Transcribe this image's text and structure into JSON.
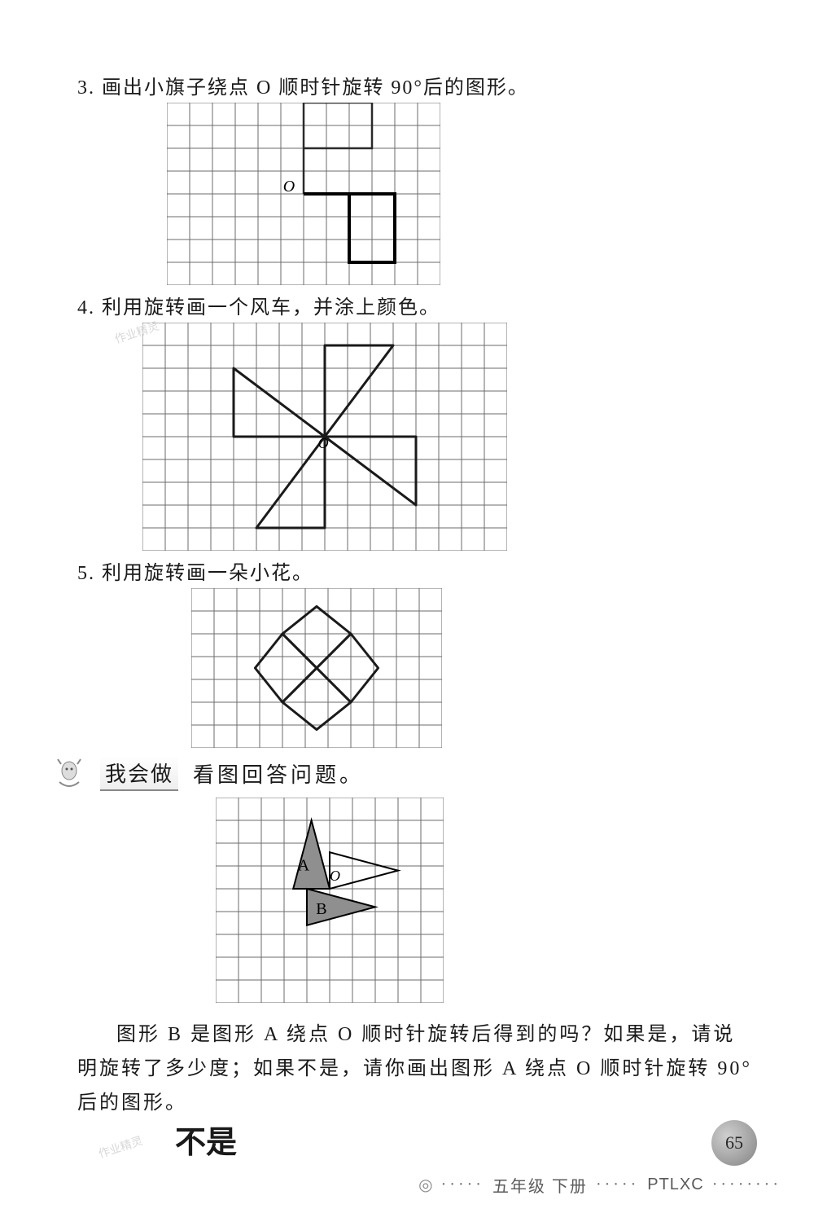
{
  "problems": {
    "p3": {
      "num": "3.",
      "text": "画出小旗子绕点 O 顺时针旋转 90°后的图形。"
    },
    "p4": {
      "num": "4.",
      "text": "利用旋转画一个风车，并涂上颜色。"
    },
    "p5": {
      "num": "5.",
      "text": "利用旋转画一朵小花。"
    }
  },
  "section": {
    "label": "我会做",
    "subtitle": "看图回答问题。"
  },
  "question_text": "图形 B 是图形 A 绕点 O 顺时针旋转后得到的吗？如果是，请说明旋转了多少度；如果不是，请你画出图形 A 绕点 O 顺时针旋转 90°后的图形。",
  "answer_handwritten": "不是",
  "footer": {
    "page": "65",
    "grade": "五年级 下册",
    "code": "PTLXC"
  },
  "watermark": "作业精灵",
  "grids": {
    "cell": 28,
    "g3": {
      "cols": 12,
      "rows": 8,
      "label_O": "O",
      "label_O_pos": [
        5.1,
        3.9
      ],
      "flag_original": {
        "poly": [
          [
            6,
            4
          ],
          [
            6,
            0
          ],
          [
            9,
            0
          ],
          [
            9,
            2
          ],
          [
            6,
            2
          ]
        ],
        "stroke": "#2a2a2a",
        "width": 2.5
      },
      "flag_rotated": {
        "poly": [
          [
            6,
            4
          ],
          [
            10,
            4
          ],
          [
            10,
            7
          ],
          [
            8,
            7
          ],
          [
            8,
            4
          ]
        ],
        "stroke": "#000000",
        "width": 4
      }
    },
    "g4": {
      "cols": 16,
      "rows": 10,
      "label_O": "O",
      "label_O_pos": [
        7.7,
        5.5
      ],
      "blades": [
        [
          [
            8,
            5
          ],
          [
            8,
            1
          ],
          [
            11,
            1
          ],
          [
            8,
            5
          ]
        ],
        [
          [
            8,
            5
          ],
          [
            12,
            5
          ],
          [
            12,
            8
          ],
          [
            8,
            5
          ]
        ],
        [
          [
            8,
            5
          ],
          [
            8,
            9
          ],
          [
            5,
            9
          ],
          [
            8,
            5
          ]
        ],
        [
          [
            8,
            5
          ],
          [
            4,
            5
          ],
          [
            4,
            2
          ],
          [
            8,
            5
          ]
        ]
      ],
      "stroke": "#1a1a1a",
      "width": 3
    },
    "g5": {
      "cols": 11,
      "rows": 7,
      "petals": [
        [
          [
            5.5,
            3.5
          ],
          [
            4.0,
            2.0
          ],
          [
            5.5,
            0.8
          ],
          [
            7.0,
            2.0
          ]
        ],
        [
          [
            5.5,
            3.5
          ],
          [
            7.0,
            2.0
          ],
          [
            8.2,
            3.5
          ],
          [
            7.0,
            5.0
          ]
        ],
        [
          [
            5.5,
            3.5
          ],
          [
            7.0,
            5.0
          ],
          [
            5.5,
            6.2
          ],
          [
            4.0,
            5.0
          ]
        ],
        [
          [
            5.5,
            3.5
          ],
          [
            4.0,
            5.0
          ],
          [
            2.8,
            3.5
          ],
          [
            4.0,
            2.0
          ]
        ]
      ],
      "stroke": "#1a1a1a",
      "width": 3
    },
    "g6": {
      "cols": 10,
      "rows": 9,
      "label_O": "O",
      "label_O_pos": [
        5.0,
        3.65
      ],
      "tri_A": {
        "label": "A",
        "pts": [
          [
            3.4,
            4
          ],
          [
            5,
            4
          ],
          [
            4.2,
            1
          ]
        ],
        "fill": "#8f8f8f"
      },
      "tri_B": {
        "label": "B",
        "pts": [
          [
            4,
            4
          ],
          [
            4,
            5.6
          ],
          [
            7,
            4.8
          ]
        ],
        "fill": "#8f8f8f"
      },
      "tri_ans": {
        "pts": [
          [
            5,
            4
          ],
          [
            5,
            2.4
          ],
          [
            8,
            3.2
          ]
        ],
        "stroke": "#000",
        "width": 2
      },
      "label_A_pos": [
        3.6,
        3.2
      ],
      "label_B_pos": [
        4.4,
        5.1
      ]
    }
  },
  "colors": {
    "grid_line": "#6b6b6b",
    "text": "#1a1a1a",
    "fig_fill": "#8f8f8f",
    "bg": "#ffffff"
  },
  "fontsize": {
    "body": 24,
    "label": 22,
    "footer": 20
  }
}
